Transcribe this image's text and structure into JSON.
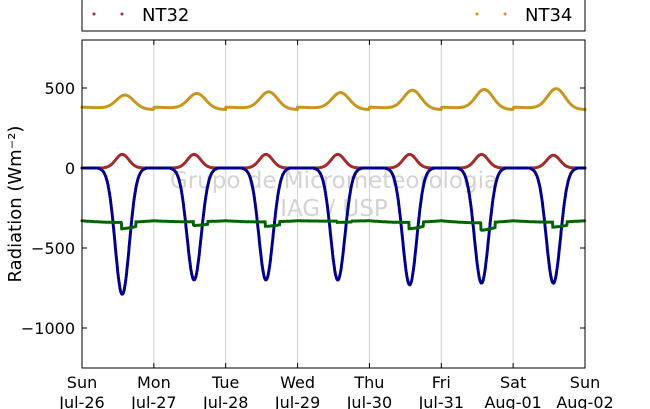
{
  "chart_data": {
    "type": "scatter",
    "ylabel": "Radiation (Wm⁻²)",
    "ylim": [
      -1250,
      800
    ],
    "yticks": [
      500,
      0,
      -500,
      -1000
    ],
    "ytick_labels": [
      "500",
      "0",
      "−500",
      "−1000"
    ],
    "x_range_days": [
      "2015-07-26",
      "2015-08-02"
    ],
    "xticks": [
      {
        "day": "Sun",
        "date": "Jul-26"
      },
      {
        "day": "Mon",
        "date": "Jul-27"
      },
      {
        "day": "Tue",
        "date": "Jul-28"
      },
      {
        "day": "Wed",
        "date": "Jul-29"
      },
      {
        "day": "Thu",
        "date": "Jul-30"
      },
      {
        "day": "Fri",
        "date": "Jul-31"
      },
      {
        "day": "Sat",
        "date": "Aug-01"
      },
      {
        "day": "Sun",
        "date": "Aug-02"
      }
    ],
    "grid": "vertical",
    "legend_entries": [
      {
        "name": "NT32",
        "color": "#a52a2a"
      },
      {
        "name": "NT34",
        "color": "#c8961e"
      }
    ],
    "series": [
      {
        "color": "#a52a2a",
        "night_value": 0,
        "daily_peak": [
          85,
          85,
          85,
          85,
          85,
          85,
          80
        ]
      },
      {
        "color": "#c8961e",
        "night_value": 380,
        "daily_peak": [
          465,
          475,
          485,
          480,
          495,
          500,
          505
        ]
      },
      {
        "color": "#00008b",
        "night_value": 0,
        "daily_min": [
          -790,
          -700,
          -700,
          -700,
          -730,
          -720,
          -720
        ]
      },
      {
        "color": "#006400",
        "night_value": -330,
        "daily_min": [
          -380,
          -360,
          -365,
          -340,
          -380,
          -390,
          -370
        ]
      }
    ],
    "watermark": [
      "Grupo de Micrometeorologia",
      "IAG / USP"
    ]
  }
}
